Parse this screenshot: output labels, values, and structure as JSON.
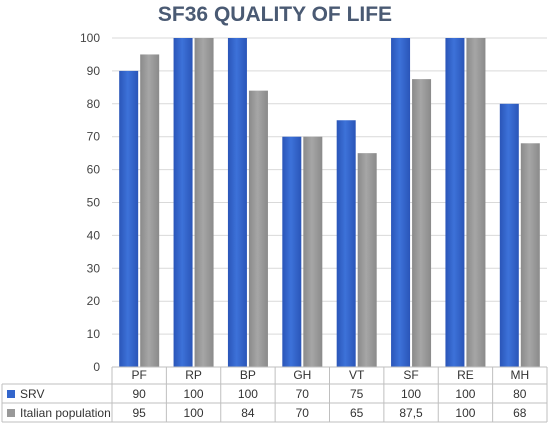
{
  "chart_data": {
    "type": "bar",
    "title": "SF36 QUALITY OF LIFE",
    "categories": [
      "PF",
      "RP",
      "BP",
      "GH",
      "VT",
      "SF",
      "RE",
      "MH"
    ],
    "series": [
      {
        "name": "SRV",
        "color": "#3366cc",
        "values": [
          90,
          100,
          100,
          70,
          75,
          100,
          100,
          80
        ],
        "labels": [
          "90",
          "100",
          "100",
          "70",
          "75",
          "100",
          "100",
          "80"
        ]
      },
      {
        "name": "Italian population",
        "color": "#999999",
        "values": [
          95,
          100,
          84,
          70,
          65,
          87.5,
          100,
          68
        ],
        "labels": [
          "95",
          "100",
          "84",
          "70",
          "65",
          "87,5",
          "100",
          "68"
        ]
      }
    ],
    "ylim": [
      0,
      100
    ],
    "yticks": [
      "0",
      "10",
      "20",
      "30",
      "40",
      "50",
      "60",
      "70",
      "80",
      "90",
      "100"
    ],
    "grid": true,
    "legend": "data-table-below"
  }
}
